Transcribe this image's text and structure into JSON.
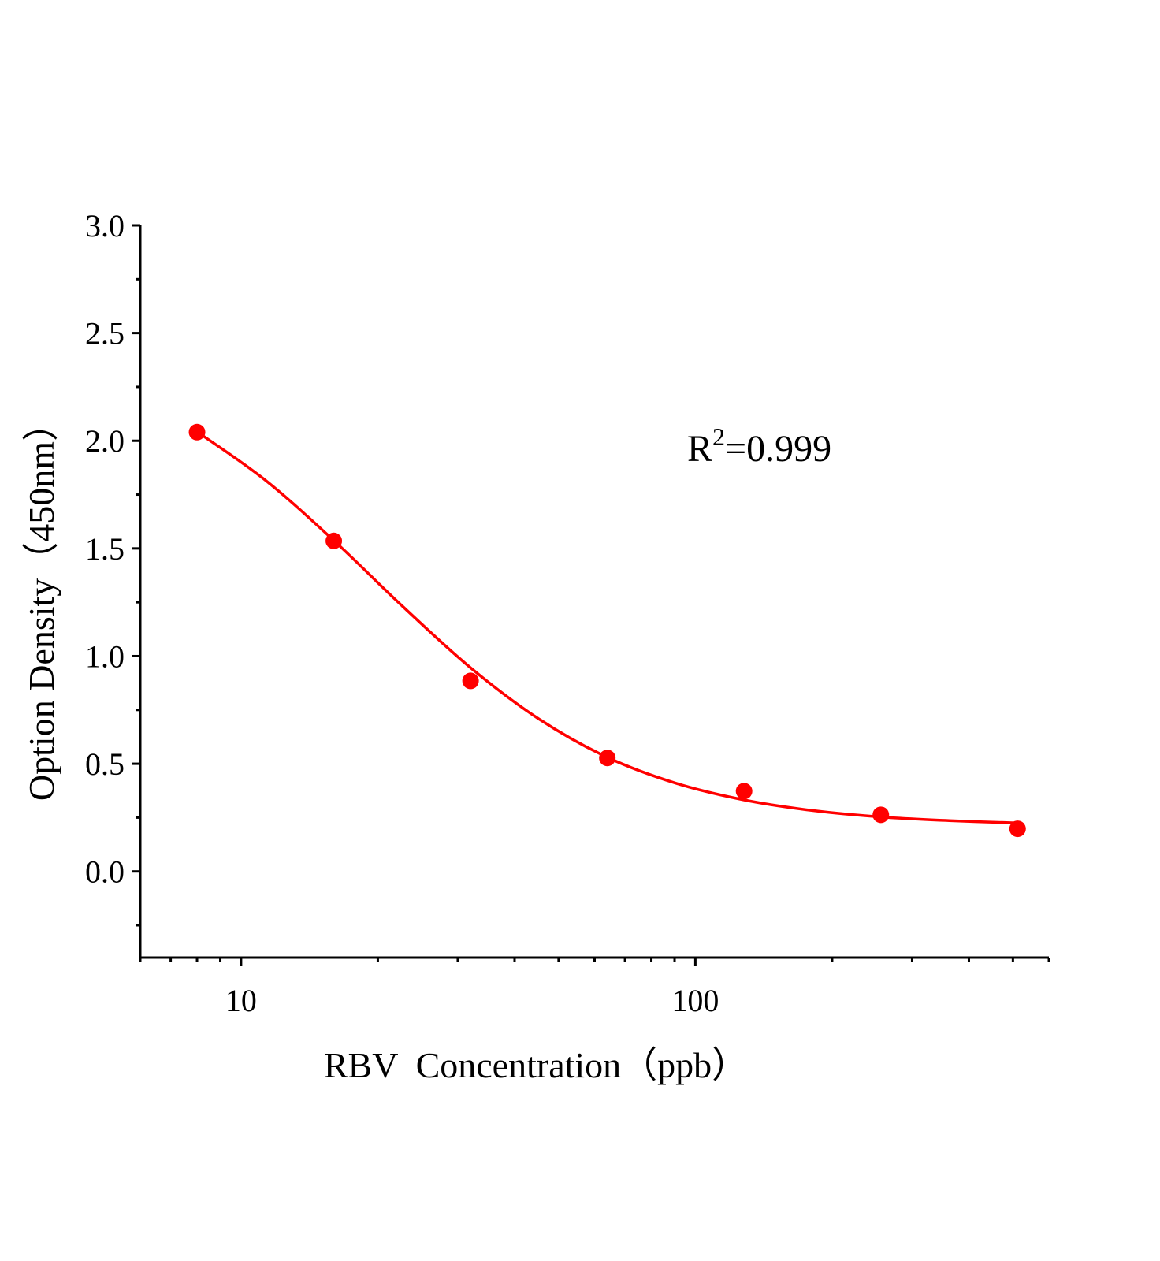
{
  "chart_data": {
    "type": "scatter",
    "title": "",
    "xlabel": "RBV  Concentration（ppb）",
    "ylabel": "Option Density（450nm）",
    "xscale": "log",
    "xlim": [
      6,
      600
    ],
    "ylim": [
      -0.4,
      3.0
    ],
    "x_ticks": [
      10,
      100
    ],
    "x_tick_labels": [
      "10",
      "100"
    ],
    "y_ticks": [
      0.0,
      0.5,
      1.0,
      1.5,
      2.0,
      2.5,
      3.0
    ],
    "y_tick_labels": [
      "0.0",
      "0.5",
      "1.0",
      "1.5",
      "2.0",
      "2.5",
      "3.0"
    ],
    "grid": false,
    "legend": "none",
    "color": "#ff0000",
    "series": [
      {
        "kind": "points",
        "x": [
          8,
          16,
          32,
          64,
          128,
          256,
          512
        ],
        "y": [
          2.04,
          1.535,
          0.885,
          0.527,
          0.373,
          0.263,
          0.198
        ]
      },
      {
        "kind": "fit-curve",
        "x": [
          8,
          11.31,
          16,
          22.63,
          32,
          45.25,
          64,
          90.5,
          128,
          181,
          256,
          362,
          512
        ],
        "y": [
          2.042,
          1.817,
          1.537,
          1.233,
          0.946,
          0.708,
          0.53,
          0.41,
          0.332,
          0.283,
          0.253,
          0.236,
          0.225
        ]
      }
    ],
    "annotation": {
      "base": "R",
      "sup": "2",
      "rest": "=0.999"
    }
  }
}
